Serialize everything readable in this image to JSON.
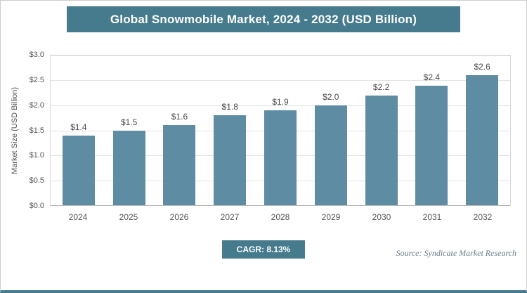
{
  "header": {
    "title": "Global Snowmobile Market, 2024 - 2032 (USD Billion)"
  },
  "chart_data": {
    "type": "bar",
    "title": "Global Snowmobile Market, 2024 - 2032 (USD Billion)",
    "categories": [
      "2024",
      "2025",
      "2026",
      "2027",
      "2028",
      "2029",
      "2030",
      "2031",
      "2032"
    ],
    "values": [
      1.4,
      1.5,
      1.6,
      1.8,
      1.9,
      2.0,
      2.2,
      2.4,
      2.6
    ],
    "value_labels": [
      "$1.4",
      "$1.5",
      "$1.6",
      "$1.8",
      "$1.9",
      "$2.0",
      "$2.2",
      "$2.4",
      "$2.6"
    ],
    "xlabel": "",
    "ylabel": "Market Size (USD Billion)",
    "ylim": [
      0,
      3.0
    ],
    "yticks": [
      "$0.0",
      "$0.5",
      "$1.0",
      "$1.5",
      "$2.0",
      "$2.5",
      "$3.0"
    ],
    "grid": true,
    "legend": false
  },
  "footer": {
    "cagr_label": "CAGR: 8.13%",
    "source": "Source: Syndicate Market Research"
  },
  "colors": {
    "accent": "#457B8D",
    "bar": "#5E8CA2",
    "grid": "#e3e3e3",
    "text": "#555555"
  }
}
